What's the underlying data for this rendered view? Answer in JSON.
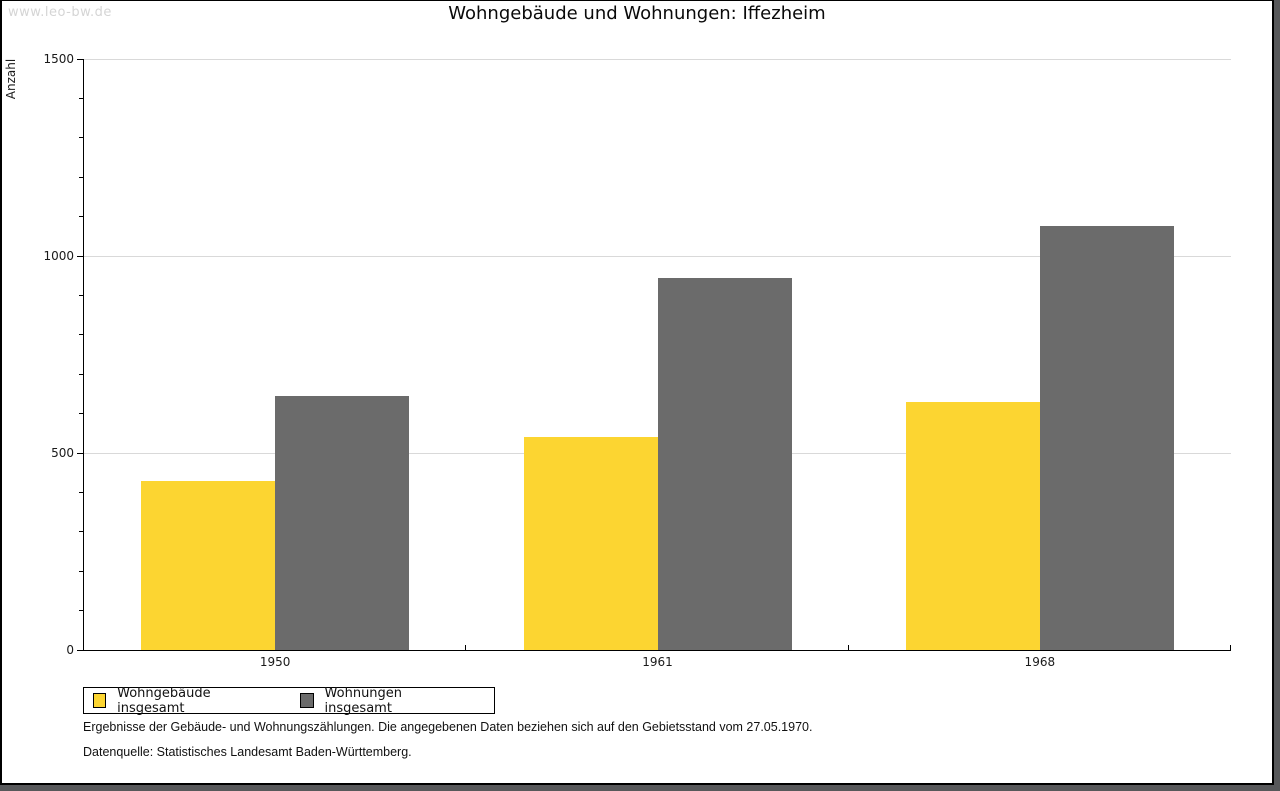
{
  "watermark": "www.leo-bw.de",
  "title": "Wohngebäude und Wohnungen: Iffezheim",
  "chart_data": {
    "type": "bar",
    "title": "Wohngebäude und Wohnungen: Iffezheim",
    "categories": [
      "1950",
      "1961",
      "1968"
    ],
    "series": [
      {
        "name": "Wohngebäude insgesamt",
        "color": "#FCD531",
        "values": [
          430,
          540,
          630
        ]
      },
      {
        "name": "Wohnungen insgesamt",
        "color": "#6B6B6B",
        "values": [
          645,
          945,
          1075
        ]
      }
    ],
    "xlabel": "",
    "ylabel": "Anzahl",
    "ylim": [
      0,
      1500
    ],
    "y_major_step": 500,
    "y_minor_step": 100,
    "grid": "horizontal-major",
    "legend_position": "bottom-left"
  },
  "footnotes": {
    "line1": "Ergebnisse der Gebäude- und Wohnungszählungen. Die angegebenen Daten beziehen sich auf den Gebietsstand vom 27.05.1970.",
    "line2": "Datenquelle: Statistisches Landesamt Baden-Württemberg."
  },
  "colors": {
    "bar_yellow": "#FCD531",
    "bar_gray": "#6B6B6B",
    "gridline": "#d9d9d9",
    "axis": "#000000",
    "watermark": "#d5d5d5",
    "window_edge": "#57585a"
  }
}
